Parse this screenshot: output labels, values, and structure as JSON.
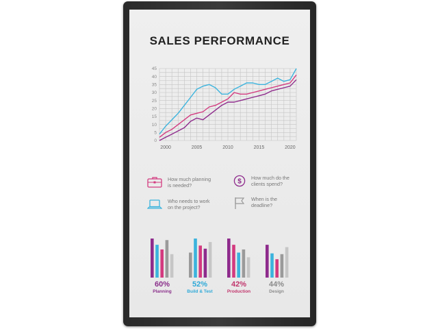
{
  "title": "SALES PERFORMANCE",
  "colors": {
    "purple": "#8e2b8c",
    "magenta": "#d33a7f",
    "cyan": "#3bb3dd",
    "grey": "#9a9a9a",
    "lightgrey": "#c6c6c6",
    "purple_text": "#8a2f8a",
    "cyan_text": "#2ea9d8",
    "magenta_text": "#c1356c",
    "grey_text": "#8a8a8a"
  },
  "chart_data": [
    {
      "type": "line",
      "title": "",
      "xlabel": "",
      "ylabel": "",
      "xlim": [
        1999,
        2021
      ],
      "ylim": [
        0,
        45
      ],
      "x_ticks": [
        "2000",
        "2005",
        "2010",
        "2015",
        "2020"
      ],
      "y_ticks": [
        "0",
        "5",
        "10",
        "15",
        "20",
        "25",
        "30",
        "35",
        "40",
        "45"
      ],
      "grid": true,
      "x": [
        1999,
        2000,
        2001,
        2002,
        2003,
        2004,
        2005,
        2006,
        2007,
        2008,
        2009,
        2010,
        2011,
        2012,
        2013,
        2014,
        2015,
        2016,
        2017,
        2018,
        2019,
        2020,
        2021
      ],
      "series": [
        {
          "color": "cyan",
          "values": [
            4,
            9,
            13,
            17,
            22,
            27,
            32,
            34,
            35,
            33,
            29,
            29,
            32,
            34,
            36,
            36,
            35,
            35,
            37,
            39,
            37,
            38,
            45
          ]
        },
        {
          "color": "magenta",
          "values": [
            2,
            5,
            7,
            10,
            13,
            16,
            17,
            18,
            21,
            22,
            24,
            26,
            30,
            29,
            29,
            30,
            31,
            32,
            33,
            34,
            35,
            36,
            41
          ]
        },
        {
          "color": "purple",
          "values": [
            0,
            2,
            4,
            6,
            8,
            12,
            14,
            13,
            16,
            19,
            22,
            24,
            24,
            25,
            26,
            27,
            28,
            29,
            31,
            32,
            33,
            34,
            38
          ]
        }
      ]
    },
    {
      "type": "bar",
      "title": "",
      "groups": [
        {
          "percent": "60%",
          "label": "Planning",
          "color": "purple_text",
          "bars": [
            100,
            84,
            72,
            96,
            60
          ],
          "bar_colors": [
            "purple",
            "cyan",
            "magenta",
            "grey",
            "lightgrey"
          ]
        },
        {
          "percent": "52%",
          "label": "Build & Test",
          "color": "cyan_text",
          "bars": [
            64,
            100,
            82,
            74,
            91
          ],
          "bar_colors": [
            "grey",
            "cyan",
            "magenta",
            "purple",
            "lightgrey"
          ]
        },
        {
          "percent": "42%",
          "label": "Production",
          "color": "magenta_text",
          "bars": [
            100,
            84,
            64,
            72,
            52
          ],
          "bar_colors": [
            "purple",
            "magenta",
            "cyan",
            "grey",
            "lightgrey"
          ]
        },
        {
          "percent": "44%",
          "label": "Design",
          "color": "grey_text",
          "bars": [
            84,
            62,
            47,
            60,
            78
          ],
          "bar_colors": [
            "purple",
            "cyan",
            "magenta",
            "grey",
            "lightgrey"
          ]
        }
      ]
    }
  ],
  "items": [
    {
      "icon": "briefcase-icon",
      "text": "How much planning is needed?",
      "color": "magenta"
    },
    {
      "icon": "dollar-icon",
      "text": "How much do the clients spend?",
      "color": "purple"
    },
    {
      "icon": "laptop-icon",
      "text": "Who needs to work on the project?",
      "color": "cyan"
    },
    {
      "icon": "flag-icon",
      "text": "When is the deadline?",
      "color": "grey"
    }
  ]
}
